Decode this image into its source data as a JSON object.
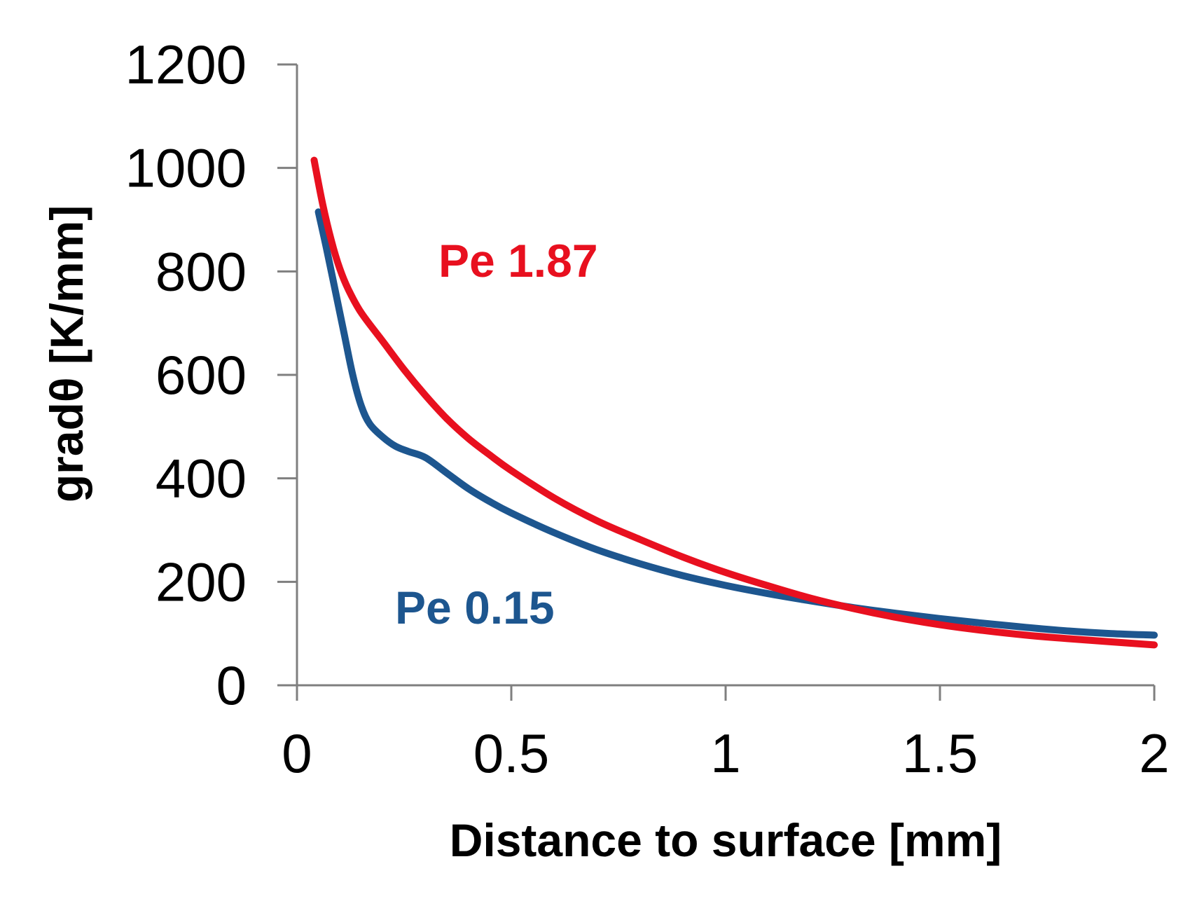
{
  "chart_data": {
    "type": "line",
    "title": "",
    "xlabel": "Distance to surface [mm]",
    "ylabel": "gradθ [K/mm]",
    "xlim": [
      0,
      2
    ],
    "ylim": [
      0,
      1200
    ],
    "x_ticks": [
      "0",
      "0.5",
      "1",
      "1.5",
      "2"
    ],
    "y_ticks": [
      "0",
      "200",
      "400",
      "600",
      "800",
      "1000",
      "1200"
    ],
    "x_tick_values": [
      0,
      0.5,
      1,
      1.5,
      2
    ],
    "y_tick_values": [
      0,
      200,
      400,
      600,
      800,
      1000,
      1200
    ],
    "grid": false,
    "legend": "none",
    "series": [
      {
        "name": "Pe 1.87",
        "color": "#e8101f",
        "x": [
          0.04,
          0.06,
          0.08,
          0.1,
          0.12,
          0.15,
          0.2,
          0.25,
          0.3,
          0.35,
          0.4,
          0.45,
          0.5,
          0.6,
          0.7,
          0.8,
          0.9,
          1.0,
          1.1,
          1.2,
          1.3,
          1.4,
          1.5,
          1.6,
          1.7,
          1.8,
          1.9,
          2.0
        ],
        "y": [
          1015,
          930,
          860,
          805,
          765,
          720,
          665,
          610,
          560,
          515,
          477,
          445,
          415,
          362,
          318,
          282,
          248,
          218,
          192,
          168,
          148,
          131,
          117,
          106,
          97,
          90,
          84,
          78
        ]
      },
      {
        "name": "Pe 0.15",
        "color": "#1d568f",
        "x": [
          0.05,
          0.07,
          0.09,
          0.11,
          0.13,
          0.15,
          0.17,
          0.2,
          0.23,
          0.26,
          0.3,
          0.35,
          0.4,
          0.45,
          0.5,
          0.6,
          0.7,
          0.8,
          0.9,
          1.0,
          1.1,
          1.2,
          1.3,
          1.4,
          1.5,
          1.6,
          1.7,
          1.8,
          1.9,
          2.0
        ],
        "y": [
          915,
          840,
          760,
          680,
          600,
          540,
          505,
          480,
          462,
          452,
          440,
          410,
          380,
          355,
          333,
          295,
          262,
          235,
          212,
          193,
          177,
          163,
          150,
          139,
          129,
          120,
          112,
          105,
          100,
          97
        ]
      }
    ]
  }
}
